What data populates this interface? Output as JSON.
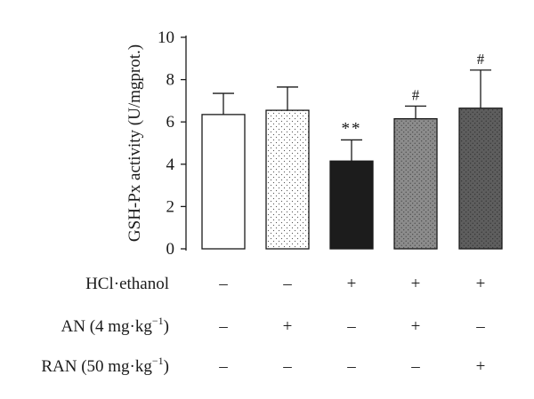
{
  "chart_data": {
    "type": "bar",
    "title": "",
    "xlabel": "",
    "ylabel": "GSH-Px activity (U/mgprot.)",
    "ylim": [
      0,
      10
    ],
    "yticks": [
      "0",
      "2",
      "4",
      "6",
      "8",
      "10"
    ],
    "bars": [
      {
        "value": 6.35,
        "error": 1.0,
        "annotation": "",
        "fill": "#ffffff",
        "pattern": "none"
      },
      {
        "value": 6.55,
        "error": 1.1,
        "annotation": "",
        "fill": "#ffffff",
        "pattern": "sparse-dots"
      },
      {
        "value": 4.15,
        "error": 1.0,
        "annotation": "**",
        "fill": "#1c1c1c",
        "pattern": "none"
      },
      {
        "value": 6.15,
        "error": 0.6,
        "annotation": "#",
        "fill": "#8c8c8c",
        "pattern": "dots"
      },
      {
        "value": 6.65,
        "error": 1.8,
        "annotation": "#",
        "fill": "#5e5e5e",
        "pattern": "dots"
      }
    ],
    "treatments": [
      {
        "label": "HCl·ethanol",
        "values": [
          "–",
          "–",
          "+",
          "+",
          "+"
        ]
      },
      {
        "label_main": "AN (4 mg·kg",
        "label_sup": "−1",
        "label_end": ")",
        "values": [
          "–",
          "+",
          "–",
          "+",
          "–"
        ]
      },
      {
        "label_main": "RAN (50 mg·kg",
        "label_sup": "−1",
        "label_end": ")",
        "values": [
          "–",
          "–",
          "–",
          "–",
          "+"
        ]
      }
    ],
    "grid": false,
    "legend": "none"
  }
}
